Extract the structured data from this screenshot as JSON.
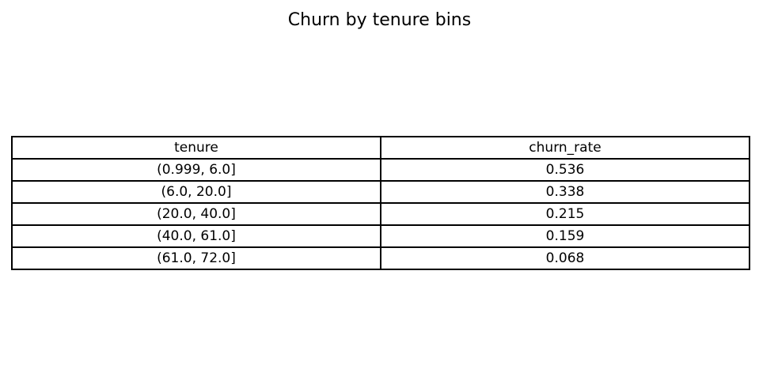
{
  "chart_data": {
    "type": "table",
    "title": "Churn by tenure bins",
    "columns": [
      "tenure",
      "churn_rate"
    ],
    "rows": [
      [
        "(0.999, 6.0]",
        "0.536"
      ],
      [
        "(6.0, 20.0]",
        "0.338"
      ],
      [
        "(20.0, 40.0]",
        "0.215"
      ],
      [
        "(40.0, 61.0]",
        "0.159"
      ],
      [
        "(61.0, 72.0]",
        "0.068"
      ]
    ]
  }
}
